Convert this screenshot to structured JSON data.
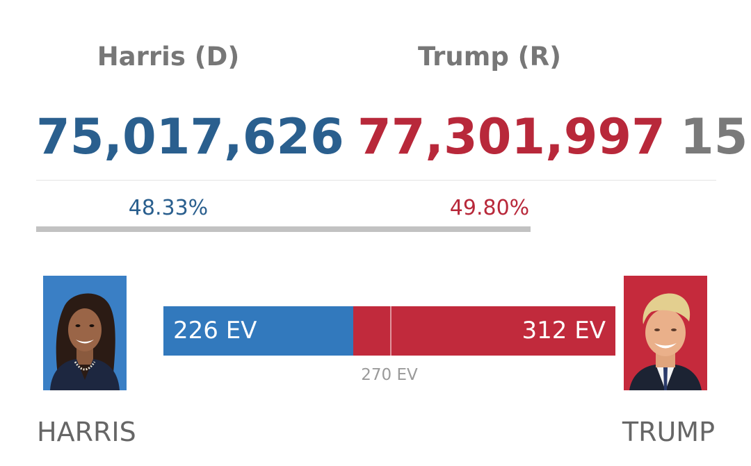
{
  "colors": {
    "dem": "#2a5f8e",
    "rep": "#b8283a",
    "dem_bar": "#3279bd",
    "rep_bar": "#c12a3c",
    "dem_portrait_bg": "#3a7fc5",
    "rep_portrait_bg": "#c52a3c",
    "neutral_text": "#777777"
  },
  "candidates": [
    {
      "id": "harris",
      "name": "Harris (D)",
      "popular_votes": "75,017,626",
      "vote_percent_label": "48.33%",
      "vote_share": 0.4833,
      "electoral_votes": 226,
      "ev_label": "226 EV",
      "bottom_label": "HARRIS",
      "portrait_icon": "harris-portrait"
    },
    {
      "id": "trump",
      "name": "Trump (R)",
      "popular_votes": "77,301,997",
      "vote_percent_label": "49.80%",
      "vote_share": 0.498,
      "electoral_votes": 312,
      "ev_label": "312 EV",
      "bottom_label": "TRUMP",
      "portrait_icon": "trump-portrait"
    }
  ],
  "other_votes_partial": "15",
  "electoral": {
    "total": 538,
    "threshold": 270,
    "threshold_label": "270 EV"
  }
}
